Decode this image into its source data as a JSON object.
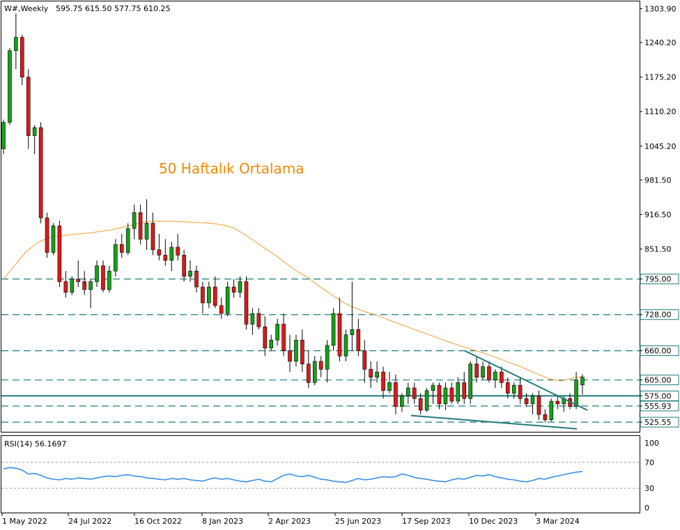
{
  "header": {
    "symbol": "W#,Weekly",
    "ohlc": "595.75 615.50 577.75 610.25"
  },
  "rsi_header": "RSI(14) 56.1697",
  "annotation": "50 Haftalık Ortalama",
  "colors": {
    "bull": "#16a116",
    "bear": "#e01818",
    "ma": "#f0a030",
    "level_line": "#1f7a7a",
    "price_tag_bg": "#ffffff",
    "rsi_line": "#3a8ee6",
    "annotation_text": "#f08a00"
  },
  "chart_data": [
    {
      "type": "candlestick",
      "timeframe": "Weekly",
      "y_range": [
        510,
        1315
      ],
      "y_ticks": [
        "1303.90",
        "1240.20",
        "1175.20",
        "1110.20",
        "1045.20",
        "981.50",
        "916.50",
        "851.50",
        "795.00",
        "728.00",
        "660.00",
        "605.00",
        "575.00",
        "555.93",
        "525.55"
      ],
      "x_tick_labels": [
        "1 May 2022",
        "24 Jul 2022",
        "16 Oct 2022",
        "8 Jan 2023",
        "2 Apr 2023",
        "25 Jun 2023",
        "17 Sep 2023",
        "10 Dec 2023",
        "3 Mar 2024"
      ],
      "horizontal_levels": [
        795.0,
        728.0,
        660.0,
        605.0,
        575.0,
        555.93,
        525.55
      ],
      "moving_average": {
        "name": "50 Haftalık Ortalama",
        "period": 50,
        "values": [
          795,
          820,
          845,
          862,
          872,
          876,
          878,
          880,
          882,
          885,
          888,
          893,
          898,
          902,
          904,
          904,
          903,
          902,
          901,
          900,
          897,
          892,
          880,
          866,
          852,
          838,
          822,
          808,
          796,
          780,
          766,
          752,
          742,
          734,
          728,
          720,
          712,
          705,
          697,
          690,
          682,
          675,
          668,
          662,
          655,
          648,
          640,
          633,
          624,
          615,
          607,
          603,
          608,
          612
        ]
      },
      "candles": [
        {
          "o": 1040,
          "h": 1095,
          "l": 1030,
          "c": 1090
        },
        {
          "o": 1090,
          "h": 1230,
          "l": 1085,
          "c": 1225
        },
        {
          "o": 1225,
          "h": 1295,
          "l": 1190,
          "c": 1250
        },
        {
          "o": 1250,
          "h": 1255,
          "l": 1160,
          "c": 1175
        },
        {
          "o": 1175,
          "h": 1190,
          "l": 1040,
          "c": 1065
        },
        {
          "o": 1065,
          "h": 1085,
          "l": 1030,
          "c": 1080
        },
        {
          "o": 1080,
          "h": 1090,
          "l": 900,
          "c": 910
        },
        {
          "o": 910,
          "h": 920,
          "l": 835,
          "c": 845
        },
        {
          "o": 845,
          "h": 900,
          "l": 840,
          "c": 895
        },
        {
          "o": 895,
          "h": 905,
          "l": 780,
          "c": 790
        },
        {
          "o": 790,
          "h": 810,
          "l": 760,
          "c": 770
        },
        {
          "o": 770,
          "h": 800,
          "l": 765,
          "c": 795
        },
        {
          "o": 795,
          "h": 830,
          "l": 780,
          "c": 790
        },
        {
          "o": 790,
          "h": 810,
          "l": 765,
          "c": 775
        },
        {
          "o": 775,
          "h": 795,
          "l": 740,
          "c": 790
        },
        {
          "o": 790,
          "h": 830,
          "l": 780,
          "c": 820
        },
        {
          "o": 820,
          "h": 830,
          "l": 770,
          "c": 775
        },
        {
          "o": 775,
          "h": 820,
          "l": 770,
          "c": 810
        },
        {
          "o": 810,
          "h": 870,
          "l": 800,
          "c": 860
        },
        {
          "o": 860,
          "h": 880,
          "l": 835,
          "c": 845
        },
        {
          "o": 845,
          "h": 900,
          "l": 840,
          "c": 890
        },
        {
          "o": 890,
          "h": 935,
          "l": 870,
          "c": 920
        },
        {
          "o": 920,
          "h": 935,
          "l": 860,
          "c": 870
        },
        {
          "o": 870,
          "h": 945,
          "l": 850,
          "c": 900
        },
        {
          "o": 900,
          "h": 920,
          "l": 840,
          "c": 850
        },
        {
          "o": 850,
          "h": 880,
          "l": 830,
          "c": 840
        },
        {
          "o": 840,
          "h": 870,
          "l": 820,
          "c": 830
        },
        {
          "o": 830,
          "h": 865,
          "l": 810,
          "c": 855
        },
        {
          "o": 855,
          "h": 880,
          "l": 830,
          "c": 840
        },
        {
          "o": 840,
          "h": 850,
          "l": 790,
          "c": 800
        },
        {
          "o": 800,
          "h": 830,
          "l": 790,
          "c": 810
        },
        {
          "o": 810,
          "h": 820,
          "l": 770,
          "c": 780
        },
        {
          "o": 780,
          "h": 790,
          "l": 730,
          "c": 750
        },
        {
          "o": 750,
          "h": 790,
          "l": 740,
          "c": 780
        }
      ]
    },
    {
      "type": "line",
      "name": "RSI(14)",
      "y_range": [
        0,
        100
      ],
      "y_ticks": [
        "100",
        "70",
        "30",
        "0"
      ],
      "reference_levels": [
        70,
        30
      ]
    }
  ]
}
